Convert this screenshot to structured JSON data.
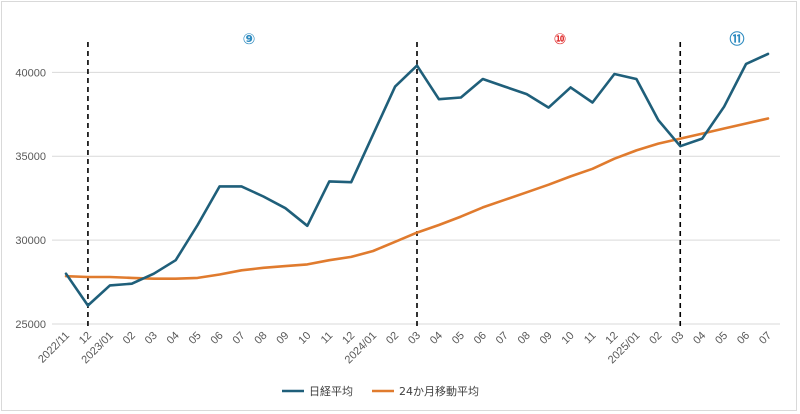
{
  "chart_data": {
    "type": "line",
    "categories": [
      "2022/11",
      "12",
      "2023/01",
      "02",
      "03",
      "04",
      "05",
      "06",
      "07",
      "08",
      "09",
      "10",
      "11",
      "12",
      "2024/01",
      "02",
      "03",
      "04",
      "05",
      "06",
      "07",
      "08",
      "09",
      "10",
      "11",
      "12",
      "2025/01",
      "02",
      "03",
      "04",
      "05",
      "06",
      "07"
    ],
    "series": [
      {
        "name": "日経平均",
        "color": "#1f5f7a",
        "values": [
          28000,
          26100,
          27300,
          27400,
          28000,
          28800,
          30900,
          33200,
          33200,
          32600,
          31900,
          30850,
          33500,
          33450,
          36300,
          39150,
          40400,
          38400,
          38500,
          39600,
          39150,
          38700,
          37900,
          39100,
          38200,
          39900,
          39600,
          37150,
          35600,
          36050,
          37950,
          40500,
          41100
        ]
      },
      {
        "name": "24か月移動平均",
        "color": "#e07b2e",
        "values": [
          27850,
          27800,
          27800,
          27750,
          27700,
          27700,
          27750,
          27950,
          28200,
          28350,
          28450,
          28550,
          28800,
          29000,
          29350,
          29900,
          30450,
          30900,
          31400,
          31950,
          32400,
          32850,
          33300,
          33800,
          34250,
          34850,
          35350,
          35750,
          36050,
          36350,
          36650,
          36950,
          37250
        ]
      }
    ],
    "y_ticks": [
      "25000",
      "30000",
      "35000",
      "40000"
    ],
    "ylim": [
      25000,
      43000
    ],
    "grid": true,
    "legend": "bottom",
    "dividers_at": [
      "12",
      "03",
      "03"
    ],
    "phases": [
      {
        "label": "⑨",
        "color": "#2e8bc0"
      },
      {
        "label": "⑩",
        "color": "#e03030"
      },
      {
        "label": "⑪",
        "color": "#2e8bc0"
      }
    ]
  }
}
